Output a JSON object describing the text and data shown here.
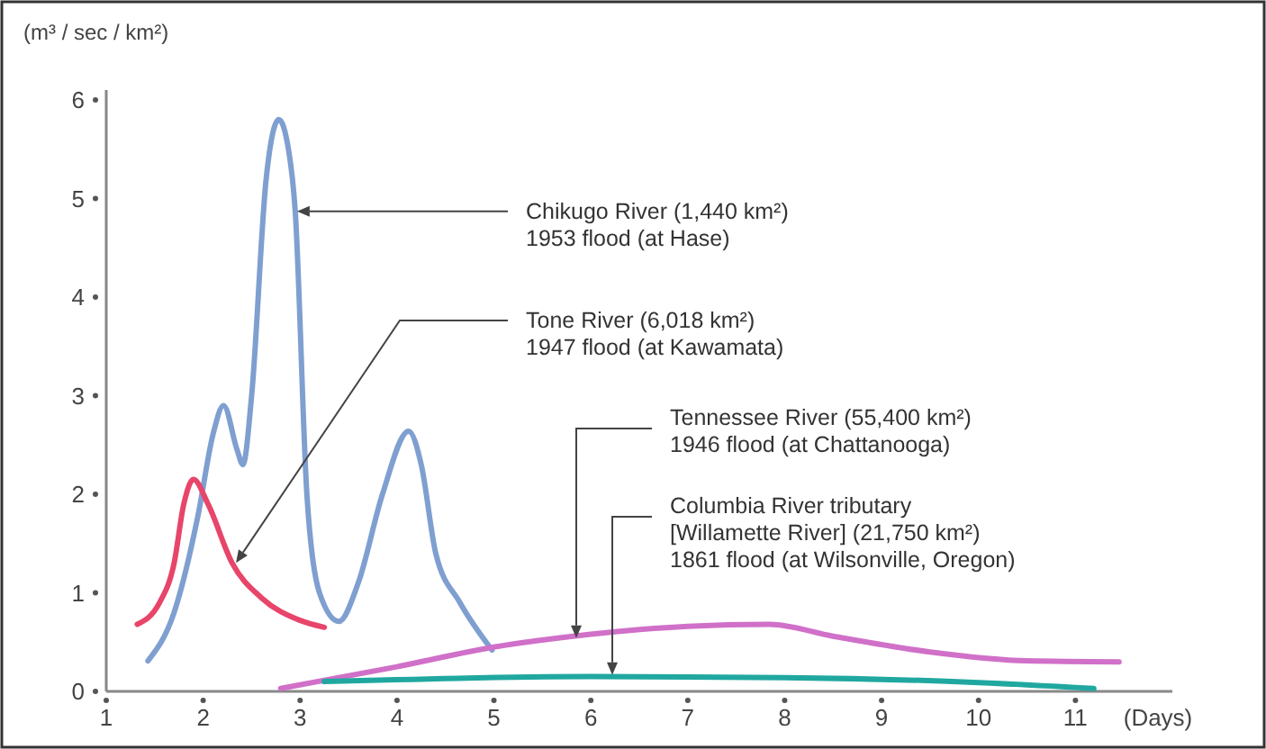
{
  "chart_data": {
    "type": "line",
    "xlabel": "(Days)",
    "ylabel": "(m³ / sec / km²)",
    "xlim": [
      1,
      12
    ],
    "ylim": [
      0,
      6.1
    ],
    "xticks": [
      1,
      2,
      3,
      4,
      5,
      6,
      7,
      8,
      9,
      10,
      11
    ],
    "yticks": [
      0,
      1,
      2,
      3,
      4,
      5,
      6
    ],
    "grid": false,
    "legend": false,
    "marker": "none",
    "line_style": "solid",
    "series": [
      {
        "name": "Chikugo River (1,440 km²)\n1953 flood (at Hase)",
        "color": "#7f9fd0",
        "x": [
          1.43,
          1.7,
          1.95,
          2.1,
          2.21,
          2.35,
          2.41,
          2.5,
          2.65,
          2.78,
          2.88,
          2.95,
          3.07,
          3.2,
          3.4,
          3.6,
          3.85,
          4.12,
          4.25,
          4.4,
          4.65,
          4.98
        ],
        "values": [
          0.31,
          0.8,
          1.8,
          2.6,
          2.9,
          2.45,
          2.3,
          3.0,
          5.2,
          5.8,
          5.5,
          4.87,
          2.0,
          1.0,
          0.71,
          1.1,
          2.0,
          2.64,
          2.3,
          1.4,
          0.9,
          0.42
        ]
      },
      {
        "name": "Tone River (6,018 km²)\n1947 flood (at Kawamata)",
        "color": "#e8456a",
        "x": [
          1.32,
          1.55,
          1.7,
          1.8,
          1.9,
          2.05,
          2.3,
          2.6,
          3.0,
          3.25
        ],
        "values": [
          0.68,
          0.9,
          1.3,
          1.9,
          2.15,
          1.9,
          1.3,
          0.95,
          0.72,
          0.65
        ]
      },
      {
        "name": "Tennessee River (55,400 km²)\n1946 flood (at Chattanooga)",
        "color": "#d070c8",
        "x": [
          2.8,
          4,
          5,
          6,
          7,
          7.84,
          8.5,
          9.5,
          10.5,
          11.45
        ],
        "values": [
          0.03,
          0.25,
          0.45,
          0.58,
          0.66,
          0.68,
          0.56,
          0.4,
          0.31,
          0.3
        ]
      },
      {
        "name": "Columbia River tributary\n[Willamette River] (21,750 km²)\n1861 flood (at Wilsonville, Oregon)",
        "color": "#20a8a0",
        "x": [
          3.25,
          6,
          8,
          10,
          11.19
        ],
        "values": [
          0.1,
          0.15,
          0.14,
          0.09,
          0.03
        ]
      }
    ]
  }
}
